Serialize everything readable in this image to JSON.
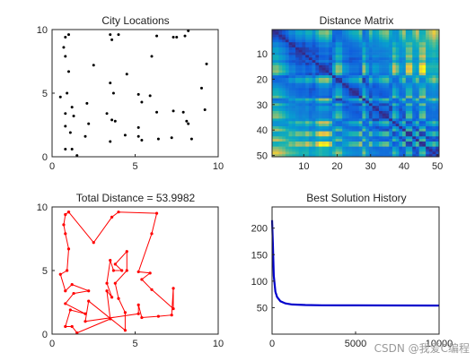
{
  "figure": {
    "background": "#ffffff",
    "axis_color": "#262626"
  },
  "chart_data": [
    {
      "type": "scatter",
      "title": "City Locations",
      "xlim": [
        0,
        10
      ],
      "ylim": [
        0,
        10
      ],
      "xticks": [
        "0",
        "5",
        "10"
      ],
      "yticks": [
        "0",
        "5",
        "10"
      ],
      "grid": false,
      "marker_color": "#000000",
      "points": [
        [
          0.8,
          9.4
        ],
        [
          1.0,
          9.6
        ],
        [
          0.7,
          8.6
        ],
        [
          0.8,
          7.9
        ],
        [
          1.0,
          6.7
        ],
        [
          0.5,
          4.7
        ],
        [
          0.9,
          5.0
        ],
        [
          0.8,
          3.4
        ],
        [
          1.3,
          3.2
        ],
        [
          1.2,
          3.9
        ],
        [
          0.8,
          2.4
        ],
        [
          2.2,
          2.6
        ],
        [
          2.1,
          4.2
        ],
        [
          1.1,
          1.9
        ],
        [
          0.8,
          0.6
        ],
        [
          1.2,
          0.6
        ],
        [
          1.5,
          0.1
        ],
        [
          2.0,
          1.6
        ],
        [
          2.5,
          7.2
        ],
        [
          3.5,
          9.6
        ],
        [
          3.6,
          9.2
        ],
        [
          3.5,
          5.8
        ],
        [
          3.7,
          5.0
        ],
        [
          3.3,
          3.4
        ],
        [
          3.6,
          2.9
        ],
        [
          3.8,
          2.8
        ],
        [
          3.5,
          1.2
        ],
        [
          4.0,
          9.6
        ],
        [
          4.5,
          6.5
        ],
        [
          4.4,
          1.7
        ],
        [
          5.2,
          4.9
        ],
        [
          5.4,
          4.3
        ],
        [
          5.2,
          2.3
        ],
        [
          5.2,
          1.6
        ],
        [
          5.4,
          1.3
        ],
        [
          5.9,
          4.8
        ],
        [
          6.3,
          9.5
        ],
        [
          6.0,
          7.9
        ],
        [
          6.3,
          3.5
        ],
        [
          6.4,
          1.4
        ],
        [
          7.3,
          9.4
        ],
        [
          7.5,
          9.4
        ],
        [
          7.3,
          3.6
        ],
        [
          7.2,
          1.5
        ],
        [
          8.0,
          9.5
        ],
        [
          8.2,
          9.9
        ],
        [
          7.9,
          3.5
        ],
        [
          8.2,
          2.6
        ],
        [
          8.4,
          1.4
        ],
        [
          8.1,
          2.8
        ],
        [
          9.0,
          5.4
        ],
        [
          9.2,
          3.7
        ],
        [
          9.3,
          7.3
        ]
      ]
    },
    {
      "type": "heatmap",
      "title": "Distance Matrix",
      "xlim": [
        0.5,
        50.5
      ],
      "ylim": [
        0.5,
        50.5
      ],
      "y_reversed": true,
      "xticks": [
        "10",
        "20",
        "30",
        "40",
        "50"
      ],
      "yticks": [
        "10",
        "20",
        "30",
        "40",
        "50"
      ],
      "size": 50,
      "colormap": "parula"
    },
    {
      "type": "line",
      "title": "Total Distance = 53.9982",
      "xlim": [
        0,
        10
      ],
      "ylim": [
        0,
        10
      ],
      "xticks": [
        "0",
        "5",
        "10"
      ],
      "yticks": [
        "0",
        "5",
        "10"
      ],
      "line_color": "#ff0000",
      "route": [
        [
          1.0,
          9.6
        ],
        [
          0.8,
          9.4
        ],
        [
          0.7,
          8.6
        ],
        [
          0.8,
          7.9
        ],
        [
          1.0,
          6.7
        ],
        [
          0.9,
          5.0
        ],
        [
          0.5,
          4.7
        ],
        [
          0.8,
          3.4
        ],
        [
          1.2,
          3.9
        ],
        [
          2.2,
          3.4
        ],
        [
          1.3,
          3.2
        ],
        [
          0.8,
          2.4
        ],
        [
          2.0,
          1.6
        ],
        [
          1.1,
          1.9
        ],
        [
          0.8,
          0.6
        ],
        [
          1.2,
          0.6
        ],
        [
          1.5,
          0.1
        ],
        [
          3.5,
          1.2
        ],
        [
          3.3,
          3.4
        ],
        [
          3.6,
          2.9
        ],
        [
          3.3,
          4.0
        ],
        [
          3.5,
          5.8
        ],
        [
          3.7,
          5.0
        ],
        [
          4.2,
          5.0
        ],
        [
          3.8,
          5.5
        ],
        [
          4.5,
          6.5
        ],
        [
          4.5,
          5.0
        ],
        [
          3.8,
          4.0
        ],
        [
          4.0,
          2.8
        ],
        [
          4.4,
          1.7
        ],
        [
          4.4,
          0.3
        ],
        [
          2.2,
          2.6
        ],
        [
          2.0,
          1.0
        ],
        [
          5.2,
          1.6
        ],
        [
          5.2,
          2.3
        ],
        [
          5.4,
          1.3
        ],
        [
          6.4,
          1.4
        ],
        [
          7.2,
          1.5
        ],
        [
          7.3,
          3.6
        ],
        [
          7.3,
          2.0
        ],
        [
          6.0,
          3.5
        ],
        [
          5.4,
          4.3
        ],
        [
          5.9,
          4.8
        ],
        [
          5.2,
          4.9
        ],
        [
          6.0,
          7.9
        ],
        [
          6.3,
          9.5
        ],
        [
          4.0,
          9.6
        ],
        [
          3.6,
          9.2
        ],
        [
          2.5,
          7.2
        ],
        [
          1.0,
          9.6
        ]
      ]
    },
    {
      "type": "line",
      "title": "Best Solution History",
      "xlim": [
        0,
        10000
      ],
      "ylim": [
        0,
        240
      ],
      "xticks": [
        "0",
        "5000",
        "10000"
      ],
      "yticks": [
        "50",
        "100",
        "150",
        "200"
      ],
      "line_color": "#0000cc",
      "series": [
        {
          "x": [
            0,
            50,
            100,
            200,
            300,
            500,
            800,
            1200,
            2000,
            3000,
            5000,
            10000
          ],
          "y": [
            215,
            170,
            110,
            80,
            70,
            62,
            58,
            56,
            55,
            54.5,
            54.2,
            54.0
          ]
        }
      ]
    }
  ],
  "watermark": "CSDN @我爱C编程"
}
